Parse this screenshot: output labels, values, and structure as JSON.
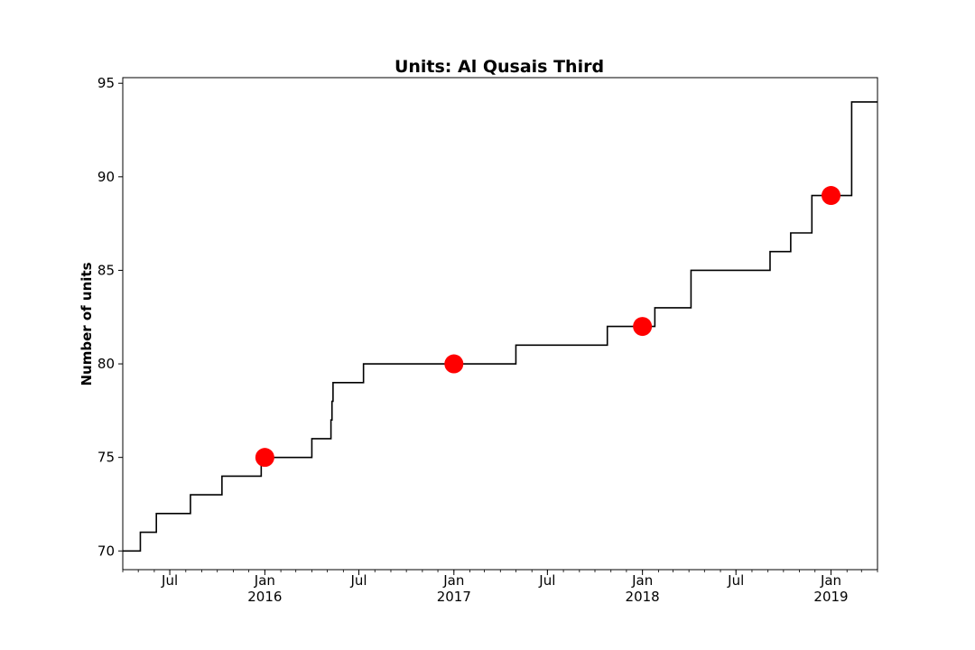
{
  "chart_data": {
    "type": "line",
    "title": "Units: Al Qusais Third",
    "xlabel": "",
    "ylabel": "Number of units",
    "xlim": [
      "2015-04-01",
      "2019-04-01"
    ],
    "ylim": [
      69,
      95.3
    ],
    "grid": false,
    "legend": "none",
    "y_ticks": [
      70,
      75,
      80,
      85,
      90,
      95
    ],
    "x_ticks": [
      {
        "date": "2015-07-01",
        "label": "Jul",
        "year": ""
      },
      {
        "date": "2016-01-01",
        "label": "Jan",
        "year": "2016"
      },
      {
        "date": "2016-07-01",
        "label": "Jul",
        "year": ""
      },
      {
        "date": "2017-01-01",
        "label": "Jan",
        "year": "2017"
      },
      {
        "date": "2017-07-01",
        "label": "Jul",
        "year": ""
      },
      {
        "date": "2018-01-01",
        "label": "Jan",
        "year": "2018"
      },
      {
        "date": "2018-07-01",
        "label": "Jul",
        "year": ""
      },
      {
        "date": "2019-01-01",
        "label": "Jan",
        "year": "2019"
      }
    ],
    "series": [
      {
        "style": "step",
        "color": "#000000",
        "points": [
          {
            "x": "2015-04-01",
            "y": 70
          },
          {
            "x": "2015-05-05",
            "y": 71
          },
          {
            "x": "2015-06-05",
            "y": 72
          },
          {
            "x": "2015-08-10",
            "y": 73
          },
          {
            "x": "2015-10-10",
            "y": 74
          },
          {
            "x": "2015-12-25",
            "y": 75
          },
          {
            "x": "2016-04-01",
            "y": 76
          },
          {
            "x": "2016-05-08",
            "y": 77
          },
          {
            "x": "2016-05-10",
            "y": 78
          },
          {
            "x": "2016-05-12",
            "y": 79
          },
          {
            "x": "2016-07-10",
            "y": 80
          },
          {
            "x": "2017-05-01",
            "y": 81
          },
          {
            "x": "2017-10-25",
            "y": 82
          },
          {
            "x": "2018-01-25",
            "y": 83
          },
          {
            "x": "2018-04-05",
            "y": 85
          },
          {
            "x": "2018-09-05",
            "y": 86
          },
          {
            "x": "2018-10-15",
            "y": 87
          },
          {
            "x": "2018-11-25",
            "y": 89
          },
          {
            "x": "2019-02-10",
            "y": 94
          },
          {
            "x": "2019-04-01",
            "y": 94
          }
        ]
      },
      {
        "style": "markers",
        "color": "#ff0000",
        "points": [
          {
            "x": "2016-01-01",
            "y": 75
          },
          {
            "x": "2017-01-01",
            "y": 80
          },
          {
            "x": "2018-01-01",
            "y": 82
          },
          {
            "x": "2019-01-01",
            "y": 89
          }
        ]
      }
    ]
  }
}
